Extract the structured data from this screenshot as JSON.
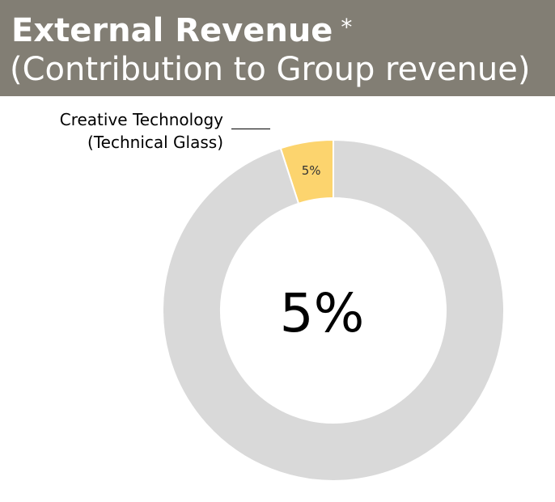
{
  "header": {
    "title": "External Revenue",
    "asterisk": "*",
    "subtitle": "(Contribution to Group revenue)"
  },
  "chart_data": {
    "type": "pie",
    "donut": true,
    "center_label": "5%",
    "slices": [
      {
        "name": "Creative Technology",
        "name_line2": "(Technical Glass)",
        "value": 5,
        "label": "5%",
        "color": "#fcd46e"
      },
      {
        "name": "",
        "value": 95,
        "label": "",
        "color": "#d9d9d9"
      }
    ]
  }
}
